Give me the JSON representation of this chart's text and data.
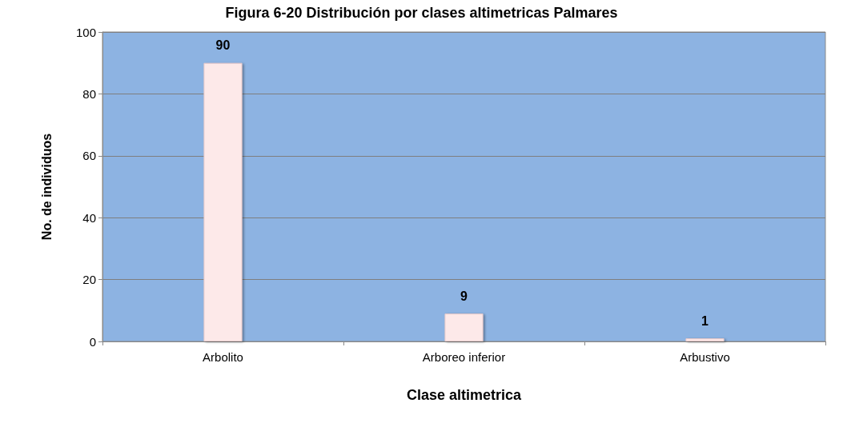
{
  "chart_data": {
    "type": "bar",
    "title": "Figura 6-20 Distribución por clases altimetricas Palmares",
    "xlabel": "Clase altimetrica",
    "ylabel": "No. de individuos",
    "categories": [
      "Arbolito",
      "Arboreo inferior",
      "Arbustivo"
    ],
    "values": [
      90,
      9,
      1
    ],
    "color": "#fde9e9",
    "ylim": [
      0,
      100
    ],
    "yticks": [
      0,
      20,
      40,
      60,
      80,
      100
    ],
    "grid": "y",
    "data_labels": true
  }
}
